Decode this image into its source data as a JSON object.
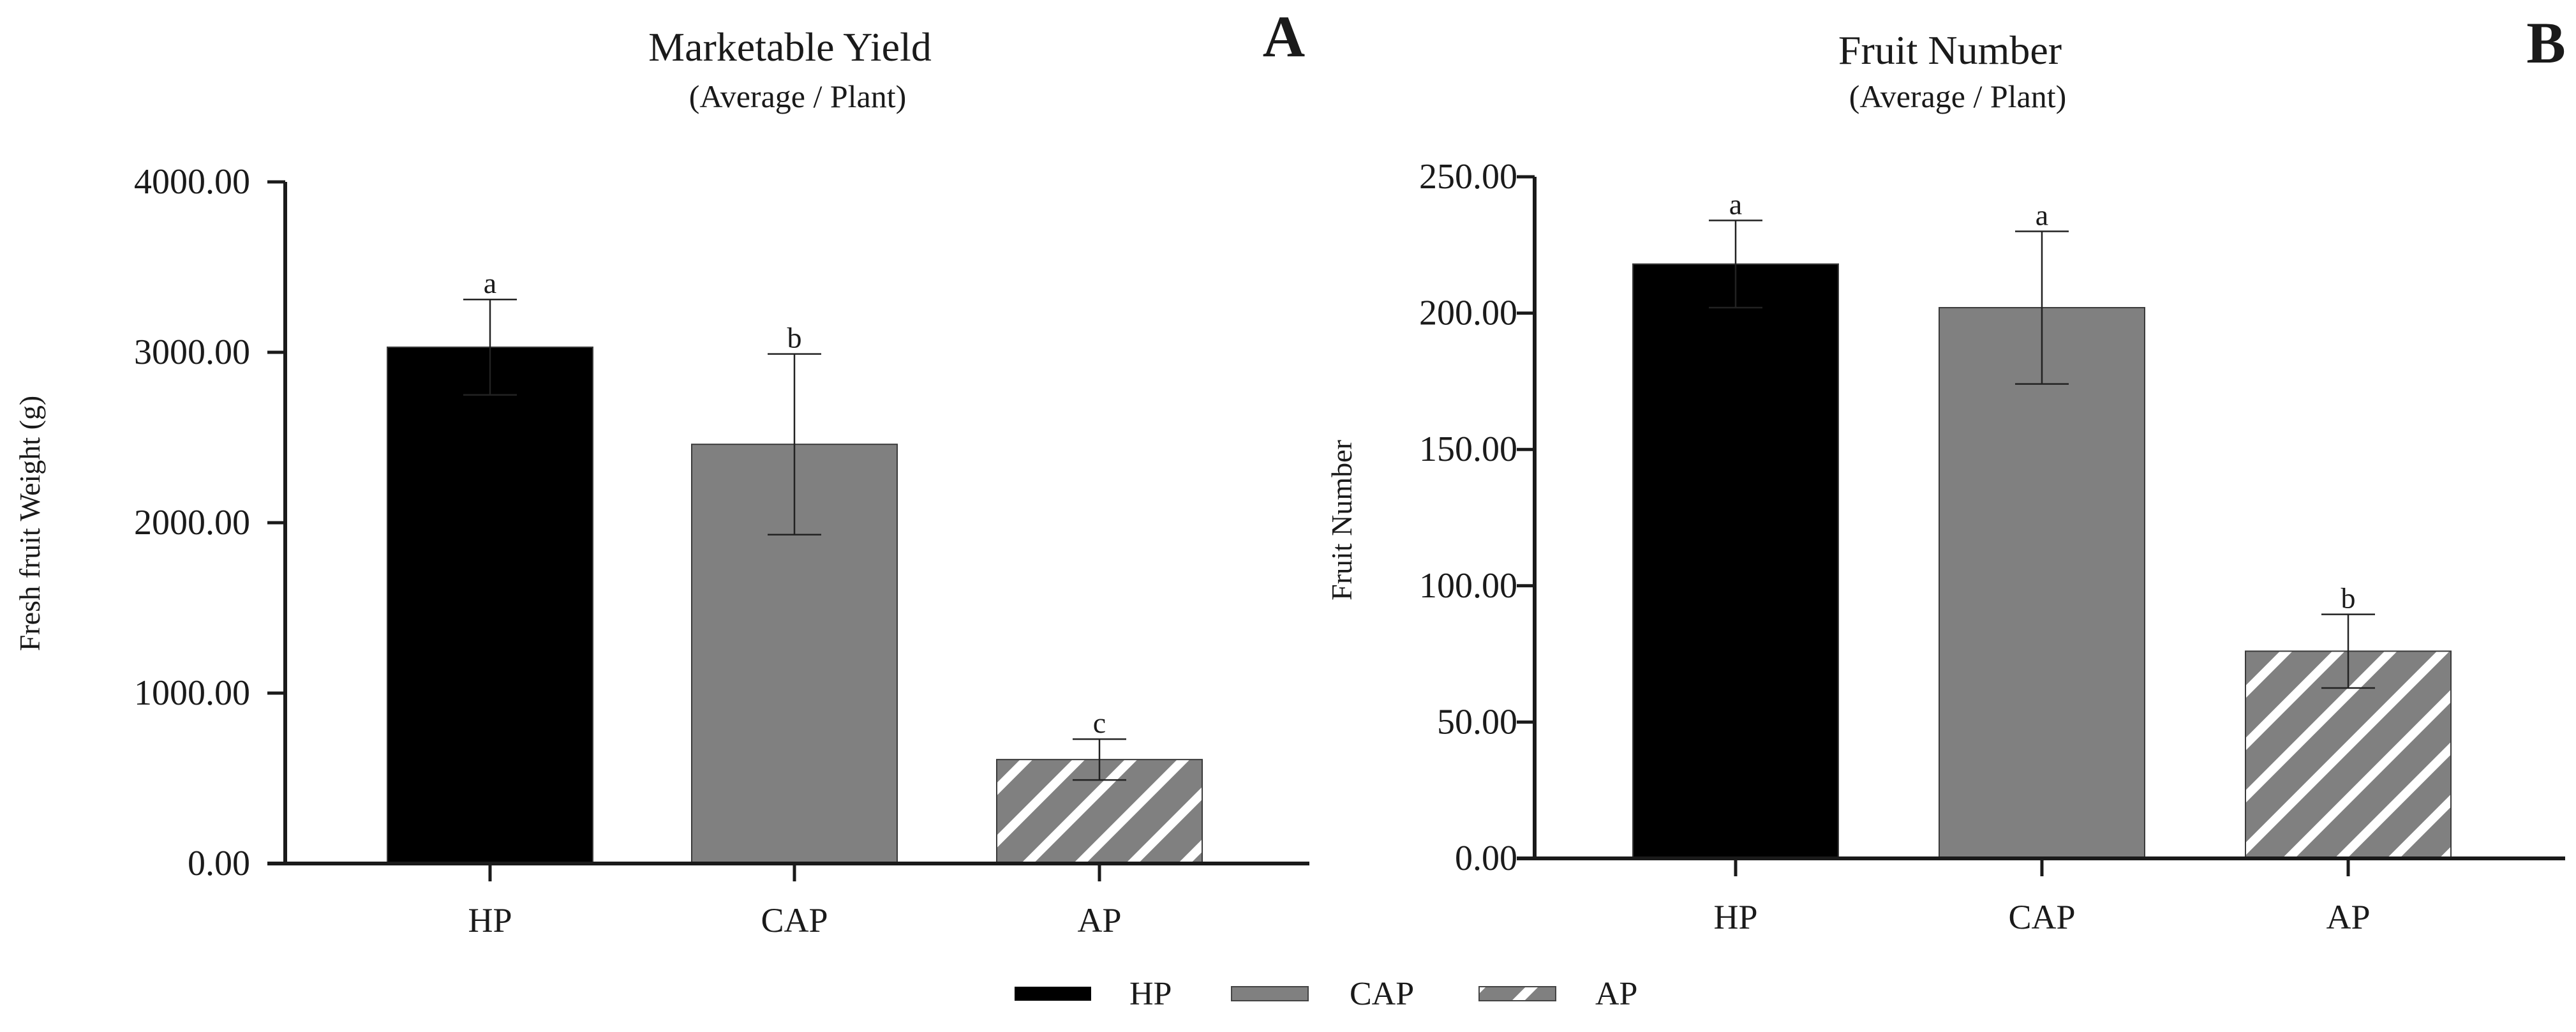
{
  "colors": {
    "hp": "#000000",
    "cap": "#808080",
    "ap_base": "#808080",
    "ap_stripe": "#ffffff",
    "axis": "#1a1a1a"
  },
  "legend": {
    "items": [
      {
        "label": "HP",
        "key": "hp",
        "pattern": "solid"
      },
      {
        "label": "CAP",
        "key": "cap",
        "pattern": "solid"
      },
      {
        "label": "AP",
        "key": "ap",
        "pattern": "diagonal-stripes"
      }
    ]
  },
  "chart_data": [
    {
      "type": "bar",
      "panel_label": "A",
      "title": "Marketable Yield",
      "subtitle": "(Average / Plant)",
      "xlabel": "",
      "ylabel": "Fresh fruit Weight (g)",
      "ylim": [
        0,
        4000
      ],
      "yticks": [
        "0.00",
        "1000.00",
        "2000.00",
        "3000.00",
        "4000.00"
      ],
      "grid": false,
      "categories": [
        "HP",
        "CAP",
        "AP"
      ],
      "values": [
        3030,
        2460,
        610
      ],
      "errors": [
        280,
        530,
        120
      ],
      "significance": [
        "a",
        "b",
        "c"
      ]
    },
    {
      "type": "bar",
      "panel_label": "B",
      "title": "Fruit Number",
      "subtitle": "(Average / Plant)",
      "xlabel": "",
      "ylabel": "Fruit Number",
      "ylim": [
        0,
        250
      ],
      "yticks": [
        "0.00",
        "50.00",
        "100.00",
        "150.00",
        "200.00",
        "250.00"
      ],
      "grid": false,
      "categories": [
        "HP",
        "CAP",
        "AP"
      ],
      "values": [
        218,
        202,
        76
      ],
      "errors": [
        16,
        28,
        13.5
      ],
      "significance": [
        "a",
        "a",
        "b"
      ]
    }
  ]
}
